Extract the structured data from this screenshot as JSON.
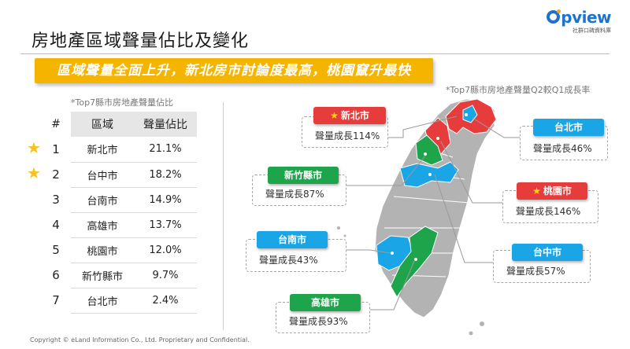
{
  "title": "房地產區域聲量佔比及變化",
  "logo": {
    "word": "pview",
    "sub": "社群口碑資料庫"
  },
  "banner": "區域聲量全面上升，新北房市討論度最高，桃園竄升最快",
  "left_caption": "*Top7縣市房地產聲量佔比",
  "right_caption": "*Top7縣市房地產聲量Q2較Q1成長率",
  "table": {
    "headers": {
      "rank": "#",
      "region": "區域",
      "share": "聲量佔比"
    },
    "rows": [
      {
        "rank": "1",
        "region": "新北市",
        "share": "21.1%"
      },
      {
        "rank": "2",
        "region": "台中市",
        "share": "18.2%"
      },
      {
        "rank": "3",
        "region": "台南市",
        "share": "14.9%"
      },
      {
        "rank": "4",
        "region": "高雄市",
        "share": "13.7%"
      },
      {
        "rank": "5",
        "region": "桃園市",
        "share": "12.0%"
      },
      {
        "rank": "6",
        "region": "新竹縣市",
        "share": "9.7%"
      },
      {
        "rank": "7",
        "region": "台北市",
        "share": "2.4%"
      }
    ]
  },
  "callouts": {
    "new_taipei": {
      "name": "新北市",
      "growth": "聲量成長114%"
    },
    "taipei": {
      "name": "台北市",
      "growth": "聲量成長46%"
    },
    "hsinchu": {
      "name": "新竹縣市",
      "growth": "聲量成長87%"
    },
    "taoyuan": {
      "name": "桃園市",
      "growth": "聲量成長146%"
    },
    "tainan": {
      "name": "台南市",
      "growth": "聲量成長43%"
    },
    "taichung": {
      "name": "台中市",
      "growth": "聲量成長57%"
    },
    "kaohsiung": {
      "name": "高雄市",
      "growth": "聲量成長93%"
    }
  },
  "colors": {
    "accent": "#f5b400",
    "red": "#e73c3c",
    "green": "#1ea44b",
    "blue": "#1aa5e6",
    "map_gray": "#b3b3b3"
  },
  "icons": {
    "star": "star-icon"
  },
  "footer": "Copyright © eLand Information Co., Ltd. Proprietary and Confidential."
}
